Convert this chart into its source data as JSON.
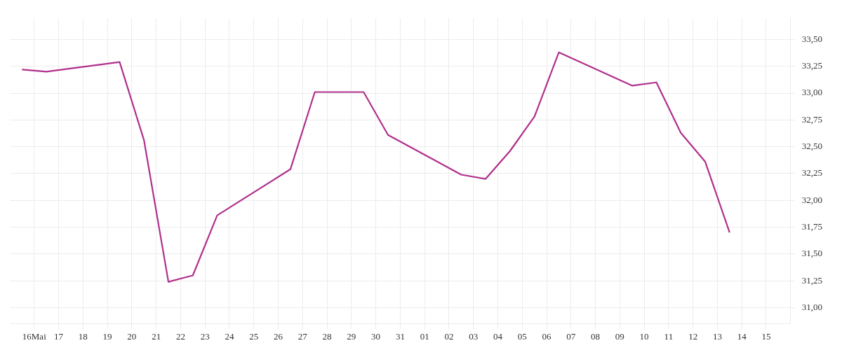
{
  "chart_data": {
    "type": "line",
    "x": [
      "--05-15T12:00",
      "--05-16T12:00",
      "--05-19T12:00",
      "--05-20T12:00",
      "--05-21T12:00",
      "--05-22T12:00",
      "--05-23T12:00",
      "--05-26T12:00",
      "--05-27T12:00",
      "--05-29T12:00",
      "--05-30T12:00",
      "--06-02T12:00",
      "--06-03T12:00",
      "--06-04T12:00",
      "--06-05T12:00",
      "--06-06T12:00",
      "--06-09T12:00",
      "--06-10T12:00",
      "--06-11T12:00",
      "--06-12T12:00",
      "--06-13T12:00"
    ],
    "series": [
      {
        "color": "#b0308c",
        "values": [
          33.22,
          33.2,
          33.29,
          32.56,
          31.24,
          31.3,
          31.86,
          32.29,
          33.01,
          33.01,
          32.61,
          32.24,
          32.2,
          32.46,
          32.78,
          33.38,
          33.07,
          33.1,
          32.63,
          32.36,
          31.7
        ]
      }
    ],
    "xlim": [
      "--05-15",
      "--06-16"
    ],
    "xticks": [
      {
        "value": "--05-16",
        "label": "16Mai"
      },
      {
        "value": "--05-17",
        "label": "17"
      },
      {
        "value": "--05-18",
        "label": "18"
      },
      {
        "value": "--05-19",
        "label": "19"
      },
      {
        "value": "--05-20",
        "label": "20"
      },
      {
        "value": "--05-21",
        "label": "21"
      },
      {
        "value": "--05-22",
        "label": "22"
      },
      {
        "value": "--05-23",
        "label": "23"
      },
      {
        "value": "--05-24",
        "label": "24"
      },
      {
        "value": "--05-25",
        "label": "25"
      },
      {
        "value": "--05-26",
        "label": "26"
      },
      {
        "value": "--05-27",
        "label": "27"
      },
      {
        "value": "--05-28",
        "label": "28"
      },
      {
        "value": "--05-29",
        "label": "29"
      },
      {
        "value": "--05-30",
        "label": "30"
      },
      {
        "value": "--05-31",
        "label": "31"
      },
      {
        "value": "--06-01",
        "label": "01"
      },
      {
        "value": "--06-02",
        "label": "02"
      },
      {
        "value": "--06-03",
        "label": "03"
      },
      {
        "value": "--06-04",
        "label": "04"
      },
      {
        "value": "--06-05",
        "label": "05"
      },
      {
        "value": "--06-06",
        "label": "06"
      },
      {
        "value": "--06-07",
        "label": "07"
      },
      {
        "value": "--06-08",
        "label": "08"
      },
      {
        "value": "--06-09",
        "label": "09"
      },
      {
        "value": "--06-10",
        "label": "10"
      },
      {
        "value": "--06-11",
        "label": "11"
      },
      {
        "value": "--06-12",
        "label": "12"
      },
      {
        "value": "--06-13",
        "label": "13"
      },
      {
        "value": "--06-14",
        "label": "14"
      },
      {
        "value": "--06-15",
        "label": "15"
      }
    ],
    "ylim": [
      30.85,
      33.7
    ],
    "yticks": [
      {
        "value": 31,
        "label": "31,00"
      },
      {
        "value": 31.25,
        "label": "31,25"
      },
      {
        "value": 31.5,
        "label": "31,50"
      },
      {
        "value": 31.75,
        "label": "31,75"
      },
      {
        "value": 32,
        "label": "32,00"
      },
      {
        "value": 32.25,
        "label": "32,25"
      },
      {
        "value": 32.5,
        "label": "32,50"
      },
      {
        "value": 32.75,
        "label": "32,75"
      },
      {
        "value": 33,
        "label": "33,00"
      },
      {
        "value": 33.25,
        "label": "33,25"
      },
      {
        "value": 33.5,
        "label": "33,50"
      }
    ],
    "grid": true,
    "legend": false,
    "marker": "none",
    "line_style": "solid"
  }
}
